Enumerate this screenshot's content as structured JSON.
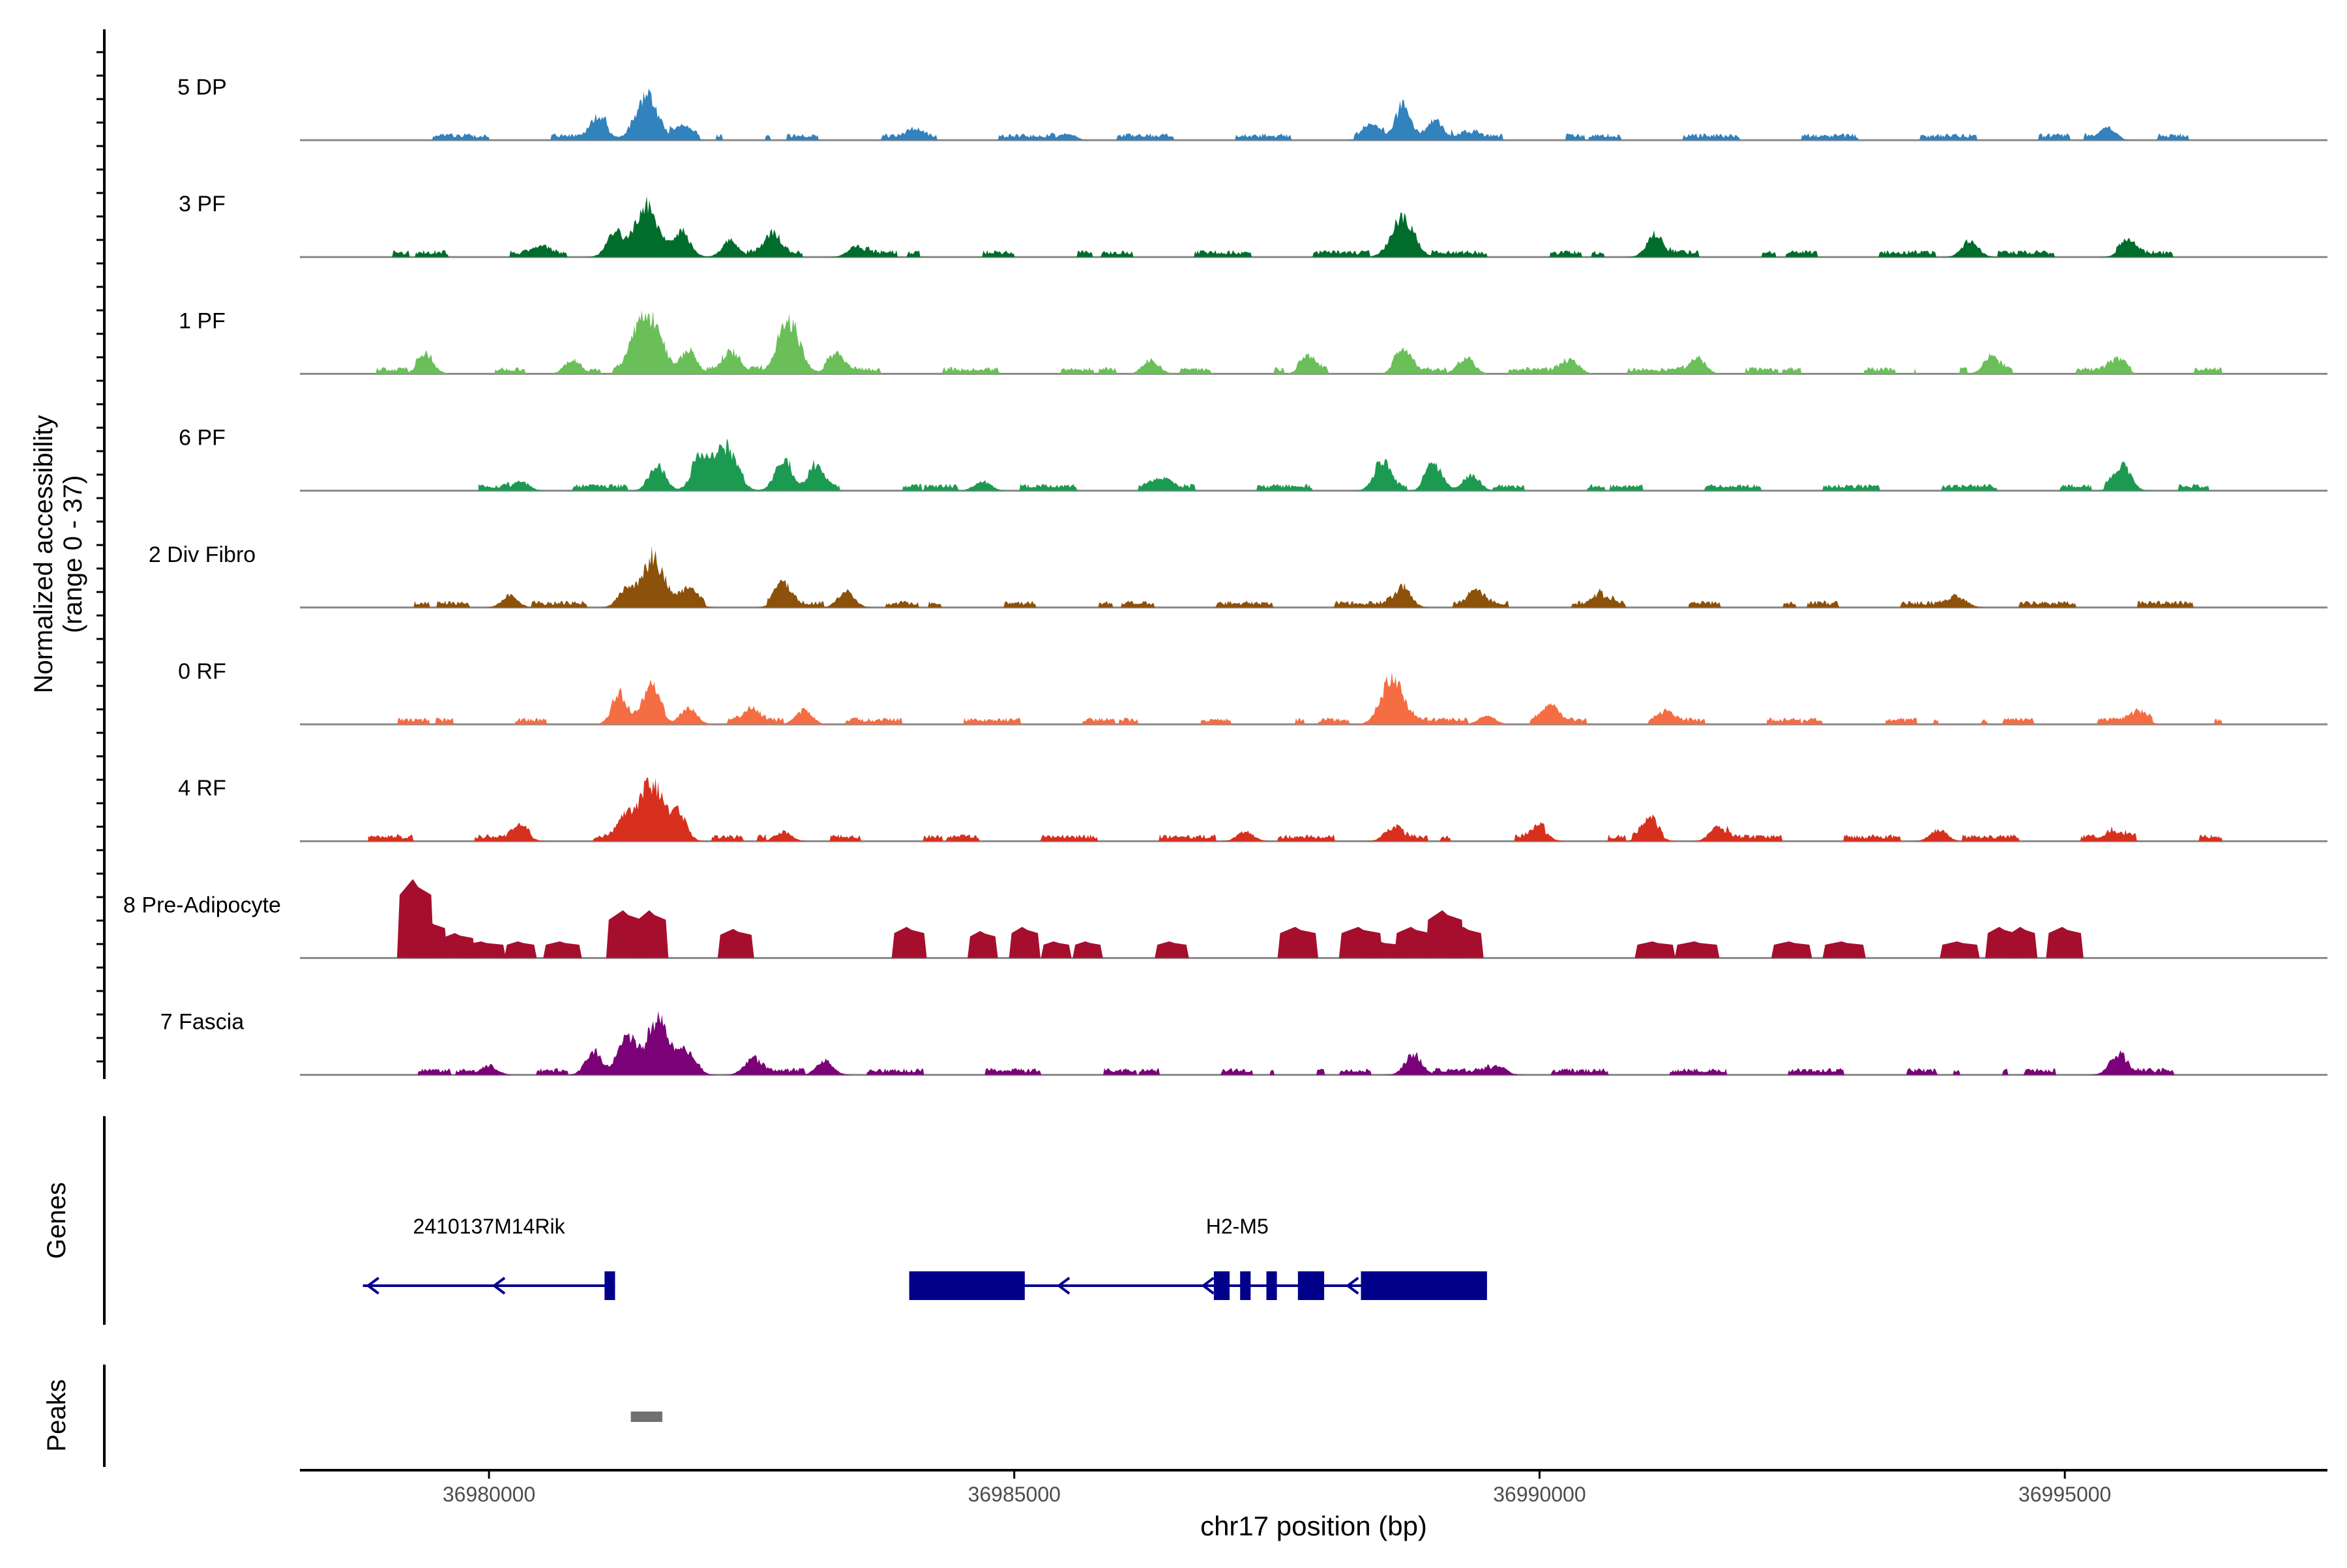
{
  "chart_data": {
    "type": "area",
    "title": "",
    "region": {
      "chrom": "chr17",
      "start": 36978200,
      "end": 36997500
    },
    "y_axis_label": "Normalized accessibility",
    "y_axis_range_label": "(range 0 - 37)",
    "ylim": [
      0,
      37
    ],
    "x_axis_label": "chr17 position (bp)",
    "x_ticks": [
      {
        "value": 36980000,
        "label": "36980000"
      },
      {
        "value": 36985000,
        "label": "36985000"
      },
      {
        "value": 36990000,
        "label": "36990000"
      },
      {
        "value": 36995000,
        "label": "36995000"
      }
    ],
    "tracks": [
      {
        "name": "5 DP",
        "color": "#3182BD",
        "signal_range": [
          36979000,
          36996500
        ],
        "peaks": [
          [
            36981050,
            0.45
          ],
          [
            36981500,
            0.95
          ],
          [
            36981850,
            0.2
          ],
          [
            36984050,
            0.15
          ],
          [
            36985500,
            0.15
          ],
          [
            36988400,
            0.25
          ],
          [
            36988700,
            0.7
          ],
          [
            36989000,
            0.45
          ],
          [
            36989300,
            0.2
          ],
          [
            36995400,
            0.3
          ]
        ]
      },
      {
        "name": "3 PF",
        "color": "#006D2C",
        "signal_range": [
          36978850,
          36996550
        ],
        "peaks": [
          [
            36980500,
            0.15
          ],
          [
            36981200,
            0.55
          ],
          [
            36981500,
            1.0
          ],
          [
            36981850,
            0.45
          ],
          [
            36982300,
            0.35
          ],
          [
            36982700,
            0.45
          ],
          [
            36983500,
            0.25
          ],
          [
            36988700,
            0.85
          ],
          [
            36991100,
            0.5
          ],
          [
            36994100,
            0.35
          ],
          [
            36995600,
            0.3
          ]
        ]
      },
      {
        "name": "1 PF",
        "color": "#6BBF59",
        "signal_range": [
          36978850,
          36996500
        ],
        "peaks": [
          [
            36979400,
            0.35
          ],
          [
            36980800,
            0.3
          ],
          [
            36981400,
            0.55
          ],
          [
            36981550,
            1.1
          ],
          [
            36981900,
            0.5
          ],
          [
            36982300,
            0.4
          ],
          [
            36982850,
            1.15
          ],
          [
            36983300,
            0.35
          ],
          [
            36986300,
            0.3
          ],
          [
            36987800,
            0.3
          ],
          [
            36988700,
            0.45
          ],
          [
            36989300,
            0.35
          ],
          [
            36990300,
            0.3
          ],
          [
            36991500,
            0.35
          ],
          [
            36994300,
            0.3
          ],
          [
            36995500,
            0.25
          ]
        ]
      },
      {
        "name": "6 PF",
        "color": "#1D9A52",
        "signal_range": [
          36979900,
          36996500
        ],
        "peaks": [
          [
            36980300,
            0.2
          ],
          [
            36981600,
            0.55
          ],
          [
            36982000,
            0.6
          ],
          [
            36982250,
            0.95
          ],
          [
            36982800,
            0.65
          ],
          [
            36983100,
            0.45
          ],
          [
            36984700,
            0.2
          ],
          [
            36986400,
            0.2
          ],
          [
            36988500,
            0.55
          ],
          [
            36989000,
            0.55
          ],
          [
            36989350,
            0.35
          ],
          [
            36995550,
            0.55
          ]
        ]
      },
      {
        "name": "2 Div Fibro",
        "color": "#8C510A",
        "signal_range": [
          36978850,
          36996400
        ],
        "peaks": [
          [
            36980200,
            0.25
          ],
          [
            36981300,
            0.35
          ],
          [
            36981550,
            1.0
          ],
          [
            36981900,
            0.35
          ],
          [
            36982800,
            0.45
          ],
          [
            36983400,
            0.35
          ],
          [
            36988700,
            0.45
          ],
          [
            36989400,
            0.3
          ],
          [
            36990600,
            0.25
          ],
          [
            36994000,
            0.2
          ]
        ]
      },
      {
        "name": "0 RF",
        "color": "#F46D43",
        "signal_range": [
          36978850,
          36996500
        ],
        "peaks": [
          [
            36981250,
            0.6
          ],
          [
            36981550,
            0.75
          ],
          [
            36981900,
            0.35
          ],
          [
            36982500,
            0.25
          ],
          [
            36983000,
            0.3
          ],
          [
            36988600,
            1.0
          ],
          [
            36989500,
            0.2
          ],
          [
            36990100,
            0.3
          ],
          [
            36991200,
            0.2
          ],
          [
            36995700,
            0.2
          ]
        ]
      },
      {
        "name": "4 RF",
        "color": "#D7301F",
        "signal_range": [
          36978850,
          36996500
        ],
        "peaks": [
          [
            36980300,
            0.25
          ],
          [
            36981300,
            0.45
          ],
          [
            36981550,
            1.25
          ],
          [
            36981800,
            0.6
          ],
          [
            36982800,
            0.2
          ],
          [
            36987200,
            0.2
          ],
          [
            36988600,
            0.3
          ],
          [
            36990000,
            0.25
          ],
          [
            36991050,
            0.4
          ],
          [
            36991700,
            0.3
          ],
          [
            36993800,
            0.25
          ],
          [
            36995500,
            0.2
          ]
        ]
      }
    ],
    "pre_adipocyte_track": {
      "name": "8 Pre-Adipocyte",
      "color": "#A50F2D",
      "bars": [
        [
          36979300,
          1.9
        ],
        [
          36979450,
          0.9
        ],
        [
          36979700,
          0.6
        ],
        [
          36979950,
          0.4
        ],
        [
          36980300,
          0.4
        ],
        [
          36980700,
          0.4
        ],
        [
          36981300,
          1.15
        ],
        [
          36981550,
          1.15
        ],
        [
          36982350,
          0.7
        ],
        [
          36984000,
          0.75
        ],
        [
          36984700,
          0.65
        ],
        [
          36985100,
          0.75
        ],
        [
          36985400,
          0.4
        ],
        [
          36985700,
          0.4
        ],
        [
          36986500,
          0.4
        ],
        [
          36987700,
          0.75
        ],
        [
          36988300,
          0.75
        ],
        [
          36988500,
          0.4
        ],
        [
          36988800,
          0.75
        ],
        [
          36989100,
          1.15
        ],
        [
          36989300,
          0.75
        ],
        [
          36991100,
          0.4
        ],
        [
          36991500,
          0.4
        ],
        [
          36992400,
          0.4
        ],
        [
          36992900,
          0.4
        ],
        [
          36994000,
          0.4
        ],
        [
          36994400,
          0.75
        ],
        [
          36994600,
          0.75
        ],
        [
          36995000,
          0.75
        ]
      ]
    },
    "fascia_track": {
      "name": "7 Fascia",
      "color": "#7A0177",
      "signal_range": [
        36978850,
        36996550
      ],
      "peaks": [
        [
          36980000,
          0.2
        ],
        [
          36981000,
          0.5
        ],
        [
          36981300,
          0.8
        ],
        [
          36981600,
          1.15
        ],
        [
          36981900,
          0.5
        ],
        [
          36982500,
          0.3
        ],
        [
          36983200,
          0.3
        ],
        [
          36988800,
          0.45
        ],
        [
          36989600,
          0.2
        ],
        [
          36995500,
          0.4
        ]
      ]
    },
    "genes_label": "Genes",
    "genes": [
      {
        "name": "2410137M14Rik",
        "strand": "-",
        "start": 36978800,
        "end": 36981200,
        "exons": [
          [
            36981100,
            36981200
          ]
        ]
      },
      {
        "name": "H2-M5",
        "strand": "-",
        "start": 36984000,
        "end": 36989500,
        "exons": [
          [
            36984000,
            36985100
          ],
          [
            36986900,
            36987050
          ],
          [
            36987150,
            36987250
          ],
          [
            36987400,
            36987500
          ],
          [
            36987700,
            36987950
          ],
          [
            36988300,
            36989500
          ]
        ]
      }
    ],
    "peaks_label": "Peaks",
    "peak_regions": [
      [
        36981350,
        36981650
      ]
    ]
  }
}
